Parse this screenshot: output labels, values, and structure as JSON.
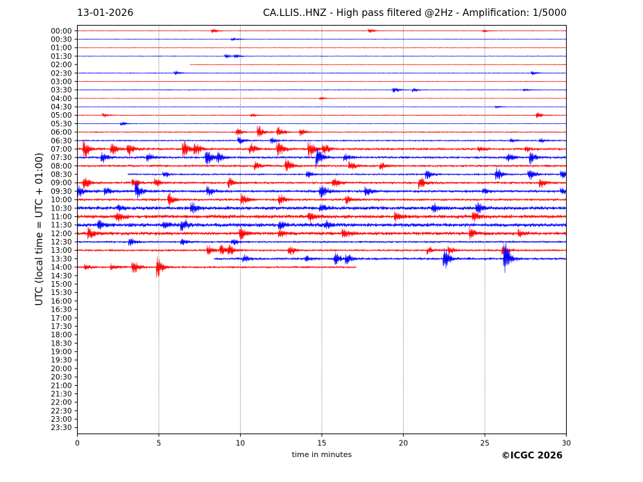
{
  "header": {
    "date": "13-01-2026",
    "title": "CA.LLIS..HNZ - High pass filtered @2Hz - Amplification: 1/5000"
  },
  "footer": {
    "credit": "©ICGC 2026"
  },
  "colors": {
    "red": "#ff0000",
    "blue": "#0000ff",
    "grid": "#000000",
    "background": "#ffffff"
  },
  "chart_data": {
    "type": "line",
    "title": "CA.LLIS..HNZ - High pass filtered @2Hz - Amplification: 1/5000",
    "xlabel": "time in minutes",
    "ylabel": "UTC (local time = UTC + 01:00)",
    "xlim": [
      0,
      30
    ],
    "x_ticks": [
      0,
      5,
      10,
      15,
      20,
      25,
      30
    ],
    "vertical_gridlines": [
      5,
      10,
      15,
      20,
      25
    ],
    "row_labels": [
      "00:00",
      "00:30",
      "01:00",
      "01:30",
      "02:00",
      "02:30",
      "03:00",
      "03:30",
      "04:00",
      "04:30",
      "05:00",
      "05:30",
      "06:00",
      "06:30",
      "07:00",
      "07:30",
      "08:00",
      "08:30",
      "09:00",
      "09:30",
      "10:00",
      "10:30",
      "11:00",
      "11:30",
      "12:00",
      "12:30",
      "13:00",
      "13:30",
      "14:00",
      "14:30",
      "15:00",
      "15:30",
      "16:00",
      "16:30",
      "17:00",
      "17:30",
      "18:00",
      "18:30",
      "19:00",
      "19:30",
      "20:00",
      "20:30",
      "21:00",
      "21:30",
      "22:00",
      "22:30",
      "23:00",
      "23:30"
    ],
    "series": [
      {
        "row": "00:00",
        "color": "red",
        "noise": 0.4,
        "start": 0,
        "end": 30,
        "events": [
          [
            8.4,
            4
          ],
          [
            18,
            3
          ],
          [
            25,
            2
          ]
        ]
      },
      {
        "row": "00:30",
        "color": "blue",
        "noise": 0.4,
        "start": 0,
        "end": 30,
        "events": [
          [
            9.6,
            3
          ]
        ]
      },
      {
        "row": "01:00",
        "color": "red",
        "noise": 0.4,
        "start": 0,
        "end": 30,
        "events": []
      },
      {
        "row": "01:30",
        "color": "blue",
        "noise": 0.4,
        "start": 0,
        "end": 30,
        "events": [
          [
            9.2,
            3
          ],
          [
            9.8,
            3
          ]
        ]
      },
      {
        "row": "02:00",
        "color": "red",
        "noise": 0.4,
        "start": 6.9,
        "end": 30,
        "events": []
      },
      {
        "row": "02:30",
        "color": "blue",
        "noise": 0.5,
        "start": 0,
        "end": 30,
        "events": [
          [
            6.1,
            3
          ],
          [
            28,
            3
          ]
        ]
      },
      {
        "row": "03:00",
        "color": "red",
        "noise": 0.4,
        "start": 0,
        "end": 30,
        "events": []
      },
      {
        "row": "03:30",
        "color": "blue",
        "noise": 0.5,
        "start": 0,
        "end": 30,
        "events": [
          [
            19.5,
            5
          ],
          [
            20.7,
            3
          ],
          [
            27.5,
            2
          ]
        ]
      },
      {
        "row": "04:00",
        "color": "red",
        "noise": 0.4,
        "start": 0,
        "end": 30,
        "events": [
          [
            15,
            2
          ]
        ]
      },
      {
        "row": "04:30",
        "color": "blue",
        "noise": 0.4,
        "start": 0,
        "end": 30,
        "events": [
          [
            25.8,
            2
          ]
        ]
      },
      {
        "row": "05:00",
        "color": "red",
        "noise": 0.6,
        "start": 0,
        "end": 30,
        "events": [
          [
            1.7,
            3
          ],
          [
            10.8,
            3
          ],
          [
            28.3,
            4
          ]
        ]
      },
      {
        "row": "05:30",
        "color": "blue",
        "noise": 0.4,
        "start": 0,
        "end": 30,
        "events": [
          [
            2.8,
            3
          ]
        ]
      },
      {
        "row": "06:00",
        "color": "red",
        "noise": 0.8,
        "start": 0,
        "end": 30,
        "events": [
          [
            9.9,
            6
          ],
          [
            11.2,
            10
          ],
          [
            12.4,
            9
          ],
          [
            13.8,
            5
          ]
        ]
      },
      {
        "row": "06:30",
        "color": "blue",
        "noise": 1.0,
        "start": 0,
        "end": 30,
        "events": [
          [
            10,
            6
          ],
          [
            12,
            5
          ],
          [
            26.7,
            3
          ],
          [
            28.5,
            3
          ]
        ]
      },
      {
        "row": "07:00",
        "color": "red",
        "noise": 1.6,
        "start": 0,
        "end": 30,
        "events": [
          [
            0.5,
            14
          ],
          [
            2.2,
            11
          ],
          [
            3.2,
            10
          ],
          [
            6.6,
            14
          ],
          [
            7.3,
            10
          ],
          [
            10.7,
            9
          ],
          [
            12.4,
            14
          ],
          [
            14.3,
            16
          ],
          [
            15.2,
            9
          ],
          [
            24.7,
            4
          ],
          [
            27.6,
            4
          ]
        ]
      },
      {
        "row": "07:30",
        "color": "blue",
        "noise": 1.6,
        "start": 0,
        "end": 30,
        "events": [
          [
            1.6,
            9
          ],
          [
            4.4,
            7
          ],
          [
            8,
            14
          ],
          [
            8.7,
            8
          ],
          [
            14.8,
            16
          ],
          [
            16.5,
            6
          ],
          [
            26.5,
            8
          ],
          [
            27.9,
            10
          ]
        ]
      },
      {
        "row": "08:00",
        "color": "red",
        "noise": 1.5,
        "start": 0,
        "end": 30,
        "events": [
          [
            11,
            6
          ],
          [
            12.9,
            12
          ],
          [
            16.8,
            8
          ],
          [
            18.7,
            6
          ]
        ]
      },
      {
        "row": "08:30",
        "color": "blue",
        "noise": 1.2,
        "start": 3.1,
        "end": 30,
        "events": [
          [
            5.4,
            5
          ],
          [
            14.2,
            6
          ],
          [
            21.5,
            7
          ],
          [
            25.8,
            12
          ],
          [
            27.8,
            10
          ],
          [
            29.8,
            8
          ]
        ]
      },
      {
        "row": "09:00",
        "color": "red",
        "noise": 1.6,
        "start": 0,
        "end": 30,
        "events": [
          [
            0.5,
            10
          ],
          [
            3.5,
            8
          ],
          [
            4.9,
            6
          ],
          [
            9.4,
            8
          ],
          [
            15.8,
            9
          ],
          [
            21.1,
            10
          ],
          [
            28.5,
            8
          ]
        ]
      },
      {
        "row": "09:30",
        "color": "blue",
        "noise": 1.8,
        "start": 0,
        "end": 30,
        "events": [
          [
            0.2,
            9
          ],
          [
            1.8,
            8
          ],
          [
            3.7,
            14
          ],
          [
            8.1,
            8
          ],
          [
            15,
            14
          ],
          [
            17.8,
            8
          ],
          [
            25,
            5
          ],
          [
            29.8,
            5
          ]
        ]
      },
      {
        "row": "10:00",
        "color": "red",
        "noise": 1.6,
        "start": 0,
        "end": 30,
        "events": [
          [
            5.7,
            10
          ],
          [
            10.2,
            9
          ],
          [
            12.5,
            8
          ],
          [
            16.6,
            7
          ]
        ]
      },
      {
        "row": "10:30",
        "color": "blue",
        "noise": 2.4,
        "start": 0,
        "end": 30,
        "events": [
          [
            2.6,
            6
          ],
          [
            7.1,
            8
          ],
          [
            15,
            6
          ],
          [
            21.9,
            8
          ],
          [
            24.6,
            9
          ]
        ]
      },
      {
        "row": "11:00",
        "color": "red",
        "noise": 2.4,
        "start": 0,
        "end": 30,
        "events": [
          [
            2.5,
            8
          ],
          [
            14.3,
            8
          ],
          [
            19.6,
            8
          ],
          [
            24.4,
            8
          ]
        ]
      },
      {
        "row": "11:30",
        "color": "blue",
        "noise": 2.6,
        "start": 0,
        "end": 30,
        "events": [
          [
            1.4,
            7
          ],
          [
            5.4,
            6
          ],
          [
            6.5,
            12
          ],
          [
            12.5,
            6
          ],
          [
            15.3,
            6
          ]
        ]
      },
      {
        "row": "12:00",
        "color": "red",
        "noise": 2.2,
        "start": 0,
        "end": 30,
        "events": [
          [
            0.8,
            10
          ],
          [
            10.1,
            10
          ],
          [
            12.5,
            7
          ],
          [
            16.4,
            7
          ],
          [
            24.2,
            8
          ],
          [
            27.2,
            5
          ]
        ]
      },
      {
        "row": "12:30",
        "color": "blue",
        "noise": 1.3,
        "start": 0,
        "end": 30,
        "events": [
          [
            3.3,
            7
          ],
          [
            6.5,
            5
          ],
          [
            9.6,
            5
          ]
        ]
      },
      {
        "row": "13:00",
        "color": "red",
        "noise": 1.4,
        "start": 0,
        "end": 30,
        "events": [
          [
            8.1,
            8
          ],
          [
            8.9,
            9
          ],
          [
            9.4,
            9
          ],
          [
            13.1,
            8
          ],
          [
            21.6,
            5
          ],
          [
            22.9,
            6
          ],
          [
            26.2,
            7
          ]
        ]
      },
      {
        "row": "13:30",
        "color": "blue",
        "noise": 1.6,
        "start": 8.4,
        "end": 30,
        "events": [
          [
            10.3,
            6
          ],
          [
            14.1,
            5
          ],
          [
            15.9,
            10
          ],
          [
            16.6,
            9
          ],
          [
            22.6,
            18
          ],
          [
            26.3,
            28
          ]
        ]
      },
      {
        "row": "14:00",
        "color": "red",
        "noise": 1.4,
        "start": 0,
        "end": 17.1,
        "events": [
          [
            0.6,
            4
          ],
          [
            2.2,
            5
          ],
          [
            3.5,
            10
          ],
          [
            5,
            16
          ]
        ]
      }
    ]
  }
}
